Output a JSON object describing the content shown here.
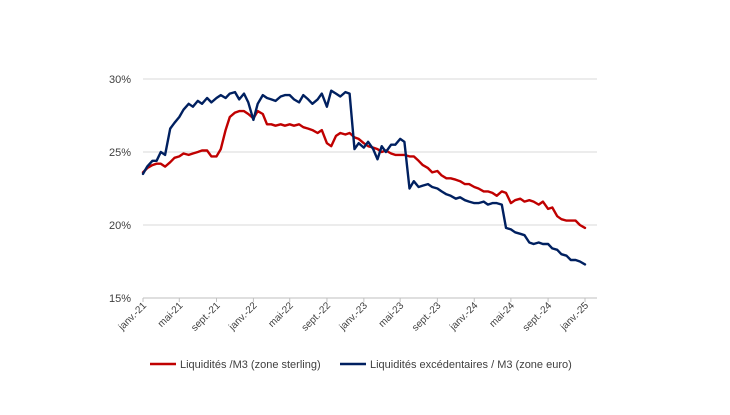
{
  "chart_data": {
    "type": "line",
    "title": "",
    "xlabel": "",
    "ylabel": "",
    "ylim": [
      15,
      30
    ],
    "y_ticks": [
      15,
      20,
      25,
      30
    ],
    "y_tick_labels": [
      "15%",
      "20%",
      "25%",
      "30%"
    ],
    "x_tick_labels": [
      "janv.-21",
      "mai-21",
      "sept.-21",
      "janv.-22",
      "mai-22",
      "sept.-22",
      "janv.-23",
      "mai-23",
      "sept.-23",
      "janv.-24",
      "mai-24",
      "sept.-24",
      "janv.-25"
    ],
    "grid": "horizontal",
    "legend_position": "bottom",
    "series": [
      {
        "name": "Liquidités /M3 (zone sterling)",
        "color": "#C00000",
        "points": [
          [
            "2021-01-01",
            23.6
          ],
          [
            "2021-01-15",
            23.9
          ],
          [
            "2021-02-01",
            24.1
          ],
          [
            "2021-02-15",
            24.2
          ],
          [
            "2021-03-01",
            24.2
          ],
          [
            "2021-03-15",
            24.0
          ],
          [
            "2021-04-01",
            24.3
          ],
          [
            "2021-04-15",
            24.6
          ],
          [
            "2021-05-01",
            24.7
          ],
          [
            "2021-05-15",
            24.9
          ],
          [
            "2021-06-01",
            24.8
          ],
          [
            "2021-06-15",
            24.9
          ],
          [
            "2021-07-01",
            25.0
          ],
          [
            "2021-07-15",
            25.1
          ],
          [
            "2021-08-01",
            25.1
          ],
          [
            "2021-08-15",
            24.7
          ],
          [
            "2021-09-01",
            24.7
          ],
          [
            "2021-09-15",
            25.2
          ],
          [
            "2021-10-01",
            26.5
          ],
          [
            "2021-10-15",
            27.4
          ],
          [
            "2021-11-01",
            27.7
          ],
          [
            "2021-11-15",
            27.8
          ],
          [
            "2021-12-01",
            27.8
          ],
          [
            "2021-12-15",
            27.6
          ],
          [
            "2022-01-01",
            27.3
          ],
          [
            "2022-01-15",
            27.8
          ],
          [
            "2022-02-01",
            27.6
          ],
          [
            "2022-02-15",
            26.9
          ],
          [
            "2022-03-01",
            26.9
          ],
          [
            "2022-03-15",
            26.8
          ],
          [
            "2022-04-01",
            26.9
          ],
          [
            "2022-04-15",
            26.8
          ],
          [
            "2022-05-01",
            26.9
          ],
          [
            "2022-05-15",
            26.8
          ],
          [
            "2022-06-01",
            26.9
          ],
          [
            "2022-06-15",
            26.7
          ],
          [
            "2022-07-01",
            26.6
          ],
          [
            "2022-07-15",
            26.5
          ],
          [
            "2022-08-01",
            26.3
          ],
          [
            "2022-08-15",
            26.5
          ],
          [
            "2022-09-01",
            25.6
          ],
          [
            "2022-09-15",
            25.4
          ],
          [
            "2022-10-01",
            26.1
          ],
          [
            "2022-10-15",
            26.3
          ],
          [
            "2022-11-01",
            26.2
          ],
          [
            "2022-11-15",
            26.3
          ],
          [
            "2022-12-01",
            26.0
          ],
          [
            "2022-12-15",
            25.9
          ],
          [
            "2023-01-01",
            25.6
          ],
          [
            "2023-01-15",
            25.4
          ],
          [
            "2023-02-01",
            25.3
          ],
          [
            "2023-02-15",
            25.2
          ],
          [
            "2023-03-01",
            25.0
          ],
          [
            "2023-03-15",
            25.1
          ],
          [
            "2023-04-01",
            24.9
          ],
          [
            "2023-04-15",
            24.8
          ],
          [
            "2023-05-01",
            24.8
          ],
          [
            "2023-05-15",
            24.8
          ],
          [
            "2023-06-01",
            24.7
          ],
          [
            "2023-06-15",
            24.7
          ],
          [
            "2023-07-01",
            24.4
          ],
          [
            "2023-07-15",
            24.1
          ],
          [
            "2023-08-01",
            23.9
          ],
          [
            "2023-08-15",
            23.6
          ],
          [
            "2023-09-01",
            23.7
          ],
          [
            "2023-09-15",
            23.4
          ],
          [
            "2023-10-01",
            23.2
          ],
          [
            "2023-10-15",
            23.2
          ],
          [
            "2023-11-01",
            23.1
          ],
          [
            "2023-11-15",
            23.0
          ],
          [
            "2023-12-01",
            22.8
          ],
          [
            "2023-12-15",
            22.8
          ],
          [
            "2024-01-01",
            22.6
          ],
          [
            "2024-01-15",
            22.5
          ],
          [
            "2024-02-01",
            22.3
          ],
          [
            "2024-02-15",
            22.3
          ],
          [
            "2024-03-01",
            22.2
          ],
          [
            "2024-03-15",
            22.0
          ],
          [
            "2024-04-01",
            22.3
          ],
          [
            "2024-04-15",
            22.2
          ],
          [
            "2024-05-01",
            21.5
          ],
          [
            "2024-05-15",
            21.7
          ],
          [
            "2024-06-01",
            21.8
          ],
          [
            "2024-06-15",
            21.6
          ],
          [
            "2024-07-01",
            21.7
          ],
          [
            "2024-07-15",
            21.6
          ],
          [
            "2024-08-01",
            21.4
          ],
          [
            "2024-08-15",
            21.6
          ],
          [
            "2024-09-01",
            21.1
          ],
          [
            "2024-09-15",
            21.2
          ],
          [
            "2024-10-01",
            20.6
          ],
          [
            "2024-10-15",
            20.4
          ],
          [
            "2024-11-01",
            20.3
          ],
          [
            "2024-11-15",
            20.3
          ],
          [
            "2024-12-01",
            20.3
          ],
          [
            "2024-12-15",
            20.0
          ],
          [
            "2025-01-01",
            19.8
          ]
        ]
      },
      {
        "name": "Liquidités excédentaires / M3 (zone euro)",
        "color": "#002060",
        "points": [
          [
            "2021-01-01",
            23.5
          ],
          [
            "2021-01-15",
            24.0
          ],
          [
            "2021-02-01",
            24.4
          ],
          [
            "2021-02-15",
            24.4
          ],
          [
            "2021-03-01",
            25.0
          ],
          [
            "2021-03-15",
            24.8
          ],
          [
            "2021-04-01",
            26.6
          ],
          [
            "2021-04-15",
            27.0
          ],
          [
            "2021-05-01",
            27.4
          ],
          [
            "2021-05-15",
            27.9
          ],
          [
            "2021-06-01",
            28.3
          ],
          [
            "2021-06-15",
            28.1
          ],
          [
            "2021-07-01",
            28.5
          ],
          [
            "2021-07-15",
            28.3
          ],
          [
            "2021-08-01",
            28.7
          ],
          [
            "2021-08-15",
            28.4
          ],
          [
            "2021-09-01",
            28.7
          ],
          [
            "2021-09-15",
            28.9
          ],
          [
            "2021-10-01",
            28.7
          ],
          [
            "2021-10-15",
            29.0
          ],
          [
            "2021-11-01",
            29.1
          ],
          [
            "2021-11-15",
            28.6
          ],
          [
            "2021-12-01",
            29.0
          ],
          [
            "2021-12-15",
            28.4
          ],
          [
            "2022-01-01",
            27.2
          ],
          [
            "2022-01-15",
            28.3
          ],
          [
            "2022-02-01",
            28.9
          ],
          [
            "2022-02-15",
            28.7
          ],
          [
            "2022-03-01",
            28.6
          ],
          [
            "2022-03-15",
            28.5
          ],
          [
            "2022-04-01",
            28.8
          ],
          [
            "2022-04-15",
            28.9
          ],
          [
            "2022-05-01",
            28.9
          ],
          [
            "2022-05-15",
            28.6
          ],
          [
            "2022-06-01",
            28.4
          ],
          [
            "2022-06-15",
            28.9
          ],
          [
            "2022-07-01",
            28.6
          ],
          [
            "2022-07-15",
            28.3
          ],
          [
            "2022-08-01",
            28.6
          ],
          [
            "2022-08-15",
            29.0
          ],
          [
            "2022-09-01",
            28.1
          ],
          [
            "2022-09-15",
            29.2
          ],
          [
            "2022-10-01",
            29.0
          ],
          [
            "2022-10-15",
            28.8
          ],
          [
            "2022-11-01",
            29.1
          ],
          [
            "2022-11-15",
            29.0
          ],
          [
            "2022-12-01",
            25.2
          ],
          [
            "2022-12-15",
            25.6
          ],
          [
            "2023-01-01",
            25.3
          ],
          [
            "2023-01-15",
            25.7
          ],
          [
            "2023-02-01",
            25.2
          ],
          [
            "2023-02-15",
            24.5
          ],
          [
            "2023-03-01",
            25.4
          ],
          [
            "2023-03-15",
            25.0
          ],
          [
            "2023-04-01",
            25.5
          ],
          [
            "2023-04-15",
            25.5
          ],
          [
            "2023-05-01",
            25.9
          ],
          [
            "2023-05-15",
            25.7
          ],
          [
            "2023-06-01",
            22.5
          ],
          [
            "2023-06-15",
            23.0
          ],
          [
            "2023-07-01",
            22.6
          ],
          [
            "2023-07-15",
            22.7
          ],
          [
            "2023-08-01",
            22.8
          ],
          [
            "2023-08-15",
            22.6
          ],
          [
            "2023-09-01",
            22.5
          ],
          [
            "2023-09-15",
            22.3
          ],
          [
            "2023-10-01",
            22.1
          ],
          [
            "2023-10-15",
            22.0
          ],
          [
            "2023-11-01",
            21.8
          ],
          [
            "2023-11-15",
            21.9
          ],
          [
            "2023-12-01",
            21.7
          ],
          [
            "2023-12-15",
            21.6
          ],
          [
            "2024-01-01",
            21.5
          ],
          [
            "2024-01-15",
            21.5
          ],
          [
            "2024-02-01",
            21.6
          ],
          [
            "2024-02-15",
            21.4
          ],
          [
            "2024-03-01",
            21.5
          ],
          [
            "2024-03-15",
            21.5
          ],
          [
            "2024-04-01",
            21.4
          ],
          [
            "2024-04-15",
            19.8
          ],
          [
            "2024-05-01",
            19.7
          ],
          [
            "2024-05-15",
            19.5
          ],
          [
            "2024-06-01",
            19.4
          ],
          [
            "2024-06-15",
            19.3
          ],
          [
            "2024-07-01",
            18.8
          ],
          [
            "2024-07-15",
            18.7
          ],
          [
            "2024-08-01",
            18.8
          ],
          [
            "2024-08-15",
            18.7
          ],
          [
            "2024-09-01",
            18.7
          ],
          [
            "2024-09-15",
            18.4
          ],
          [
            "2024-10-01",
            18.3
          ],
          [
            "2024-10-15",
            18.0
          ],
          [
            "2024-11-01",
            17.9
          ],
          [
            "2024-11-15",
            17.6
          ],
          [
            "2024-12-01",
            17.6
          ],
          [
            "2024-12-15",
            17.5
          ],
          [
            "2025-01-01",
            17.3
          ]
        ]
      }
    ]
  }
}
